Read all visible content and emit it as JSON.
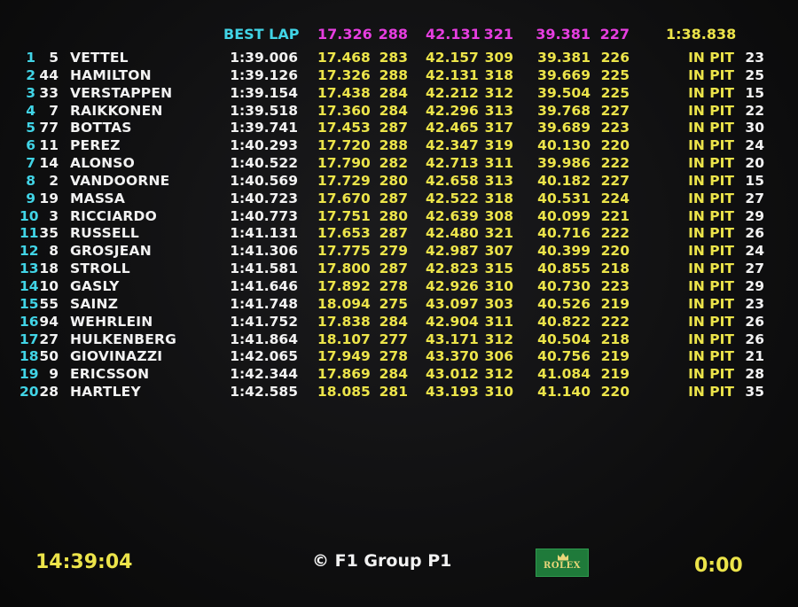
{
  "header": {
    "best_lap_label": "BEST LAP",
    "best_s1": "17.326",
    "best_sp1": "288",
    "best_s2": "42.131",
    "best_sp2": "321",
    "best_s3": "39.381",
    "best_sp3": "227",
    "ideal_lap": "1:38.838"
  },
  "rows": [
    {
      "pos": "1",
      "num": "5",
      "name": "VETTEL",
      "best": "1:39.006",
      "s1": "17.468",
      "sp1": "283",
      "s2": "42.157",
      "sp2": "309",
      "s3": "39.381",
      "sp3": "226",
      "status": "IN PIT",
      "laps": "23"
    },
    {
      "pos": "2",
      "num": "44",
      "name": "HAMILTON",
      "best": "1:39.126",
      "s1": "17.326",
      "sp1": "288",
      "s2": "42.131",
      "sp2": "318",
      "s3": "39.669",
      "sp3": "225",
      "status": "IN PIT",
      "laps": "25"
    },
    {
      "pos": "3",
      "num": "33",
      "name": "VERSTAPPEN",
      "best": "1:39.154",
      "s1": "17.438",
      "sp1": "284",
      "s2": "42.212",
      "sp2": "312",
      "s3": "39.504",
      "sp3": "225",
      "status": "IN PIT",
      "laps": "15"
    },
    {
      "pos": "4",
      "num": "7",
      "name": "RAIKKONEN",
      "best": "1:39.518",
      "s1": "17.360",
      "sp1": "284",
      "s2": "42.296",
      "sp2": "313",
      "s3": "39.768",
      "sp3": "227",
      "status": "IN PIT",
      "laps": "22"
    },
    {
      "pos": "5",
      "num": "77",
      "name": "BOTTAS",
      "best": "1:39.741",
      "s1": "17.453",
      "sp1": "287",
      "s2": "42.465",
      "sp2": "317",
      "s3": "39.689",
      "sp3": "223",
      "status": "IN PIT",
      "laps": "30"
    },
    {
      "pos": "6",
      "num": "11",
      "name": "PEREZ",
      "best": "1:40.293",
      "s1": "17.720",
      "sp1": "288",
      "s2": "42.347",
      "sp2": "319",
      "s3": "40.130",
      "sp3": "220",
      "status": "IN PIT",
      "laps": "24"
    },
    {
      "pos": "7",
      "num": "14",
      "name": "ALONSO",
      "best": "1:40.522",
      "s1": "17.790",
      "sp1": "282",
      "s2": "42.713",
      "sp2": "311",
      "s3": "39.986",
      "sp3": "222",
      "status": "IN PIT",
      "laps": "20"
    },
    {
      "pos": "8",
      "num": "2",
      "name": "VANDOORNE",
      "best": "1:40.569",
      "s1": "17.729",
      "sp1": "280",
      "s2": "42.658",
      "sp2": "313",
      "s3": "40.182",
      "sp3": "227",
      "status": "IN PIT",
      "laps": "15"
    },
    {
      "pos": "9",
      "num": "19",
      "name": "MASSA",
      "best": "1:40.723",
      "s1": "17.670",
      "sp1": "287",
      "s2": "42.522",
      "sp2": "318",
      "s3": "40.531",
      "sp3": "224",
      "status": "IN PIT",
      "laps": "27"
    },
    {
      "pos": "10",
      "num": "3",
      "name": "RICCIARDO",
      "best": "1:40.773",
      "s1": "17.751",
      "sp1": "280",
      "s2": "42.639",
      "sp2": "308",
      "s3": "40.099",
      "sp3": "221",
      "status": "IN PIT",
      "laps": "29"
    },
    {
      "pos": "11",
      "num": "35",
      "name": "RUSSELL",
      "best": "1:41.131",
      "s1": "17.653",
      "sp1": "287",
      "s2": "42.480",
      "sp2": "321",
      "s3": "40.716",
      "sp3": "222",
      "status": "IN PIT",
      "laps": "26"
    },
    {
      "pos": "12",
      "num": "8",
      "name": "GROSJEAN",
      "best": "1:41.306",
      "s1": "17.775",
      "sp1": "279",
      "s2": "42.987",
      "sp2": "307",
      "s3": "40.399",
      "sp3": "220",
      "status": "IN PIT",
      "laps": "24"
    },
    {
      "pos": "13",
      "num": "18",
      "name": "STROLL",
      "best": "1:41.581",
      "s1": "17.800",
      "sp1": "287",
      "s2": "42.823",
      "sp2": "315",
      "s3": "40.855",
      "sp3": "218",
      "status": "IN PIT",
      "laps": "27"
    },
    {
      "pos": "14",
      "num": "10",
      "name": "GASLY",
      "best": "1:41.646",
      "s1": "17.892",
      "sp1": "278",
      "s2": "42.926",
      "sp2": "310",
      "s3": "40.730",
      "sp3": "223",
      "status": "IN PIT",
      "laps": "29"
    },
    {
      "pos": "15",
      "num": "55",
      "name": "SAINZ",
      "best": "1:41.748",
      "s1": "18.094",
      "sp1": "275",
      "s2": "43.097",
      "sp2": "303",
      "s3": "40.526",
      "sp3": "219",
      "status": "IN PIT",
      "laps": "23"
    },
    {
      "pos": "16",
      "num": "94",
      "name": "WEHRLEIN",
      "best": "1:41.752",
      "s1": "17.838",
      "sp1": "284",
      "s2": "42.904",
      "sp2": "311",
      "s3": "40.822",
      "sp3": "222",
      "status": "IN PIT",
      "laps": "26"
    },
    {
      "pos": "17",
      "num": "27",
      "name": "HULKENBERG",
      "best": "1:41.864",
      "s1": "18.107",
      "sp1": "277",
      "s2": "43.171",
      "sp2": "312",
      "s3": "40.504",
      "sp3": "218",
      "status": "IN PIT",
      "laps": "26"
    },
    {
      "pos": "18",
      "num": "50",
      "name": "GIOVINAZZI",
      "best": "1:42.065",
      "s1": "17.949",
      "sp1": "278",
      "s2": "43.370",
      "sp2": "306",
      "s3": "40.756",
      "sp3": "219",
      "status": "IN PIT",
      "laps": "21"
    },
    {
      "pos": "19",
      "num": "9",
      "name": "ERICSSON",
      "best": "1:42.344",
      "s1": "17.869",
      "sp1": "284",
      "s2": "43.012",
      "sp2": "312",
      "s3": "41.084",
      "sp3": "219",
      "status": "IN PIT",
      "laps": "28"
    },
    {
      "pos": "20",
      "num": "28",
      "name": "HARTLEY",
      "best": "1:42.585",
      "s1": "18.085",
      "sp1": "281",
      "s2": "43.193",
      "sp2": "310",
      "s3": "41.140",
      "sp3": "220",
      "status": "IN PIT",
      "laps": "35"
    }
  ],
  "footer": {
    "clock": "14:39:04",
    "copyright": "© F1 Group  P1",
    "sponsor": "ROLEX",
    "session_timer": "0:00"
  },
  "colors": {
    "position": "#41d4e6",
    "session_best": "#e63ee0",
    "sector": "#ece44a",
    "text": "#f2f2f2",
    "background": "#0c0c0d",
    "rolex_green": "#1f7a3a"
  }
}
